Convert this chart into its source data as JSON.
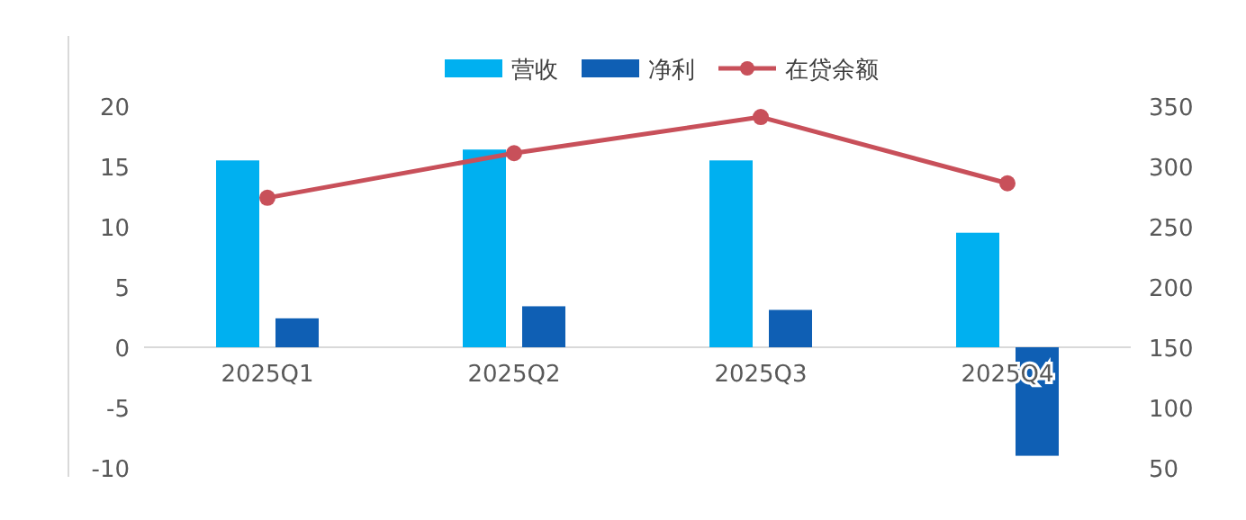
{
  "chart_data": {
    "type": "bar",
    "categories": [
      "2025Q1",
      "2025Q2",
      "2025Q3",
      "2025Q4"
    ],
    "series": [
      {
        "name": "营收",
        "color": "#00b0f0",
        "values": [
          15.5,
          16.4,
          15.5,
          9.5
        ]
      },
      {
        "name": "净利",
        "color": "#0f5fb4",
        "values": [
          2.4,
          3.4,
          3.1,
          -9.0
        ]
      },
      {
        "name": "在贷余额",
        "type": "line",
        "axis": "y2",
        "color": "#c8505a",
        "marker": "circle",
        "values": [
          274,
          311,
          341,
          286
        ]
      }
    ],
    "ylim": [
      -10,
      20
    ],
    "yticks": [
      -10,
      -5,
      0,
      5,
      10,
      15,
      20
    ],
    "y2lim": [
      50,
      350
    ],
    "y2ticks": [
      50,
      100,
      150,
      200,
      250,
      300,
      350
    ],
    "legend": "top",
    "grid": false
  }
}
